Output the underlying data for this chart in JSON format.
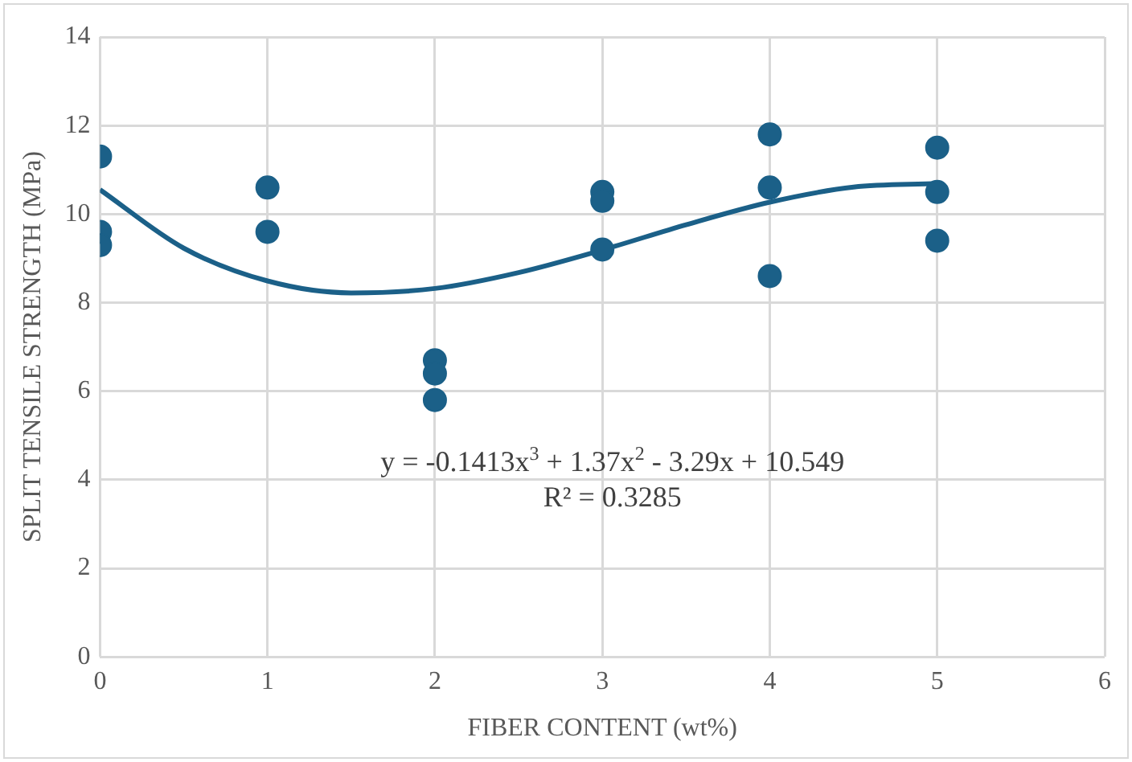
{
  "chart_data": {
    "type": "scatter",
    "xlabel": "FIBER CONTENT (wt%)",
    "ylabel": "SPLIT TENSILE STRENGTH (MPa)",
    "xlim": [
      0,
      6
    ],
    "xticks": [
      0,
      1,
      2,
      3,
      4,
      5,
      6
    ],
    "ylim": [
      0,
      14
    ],
    "yticks": [
      0,
      2,
      4,
      6,
      8,
      10,
      12,
      14
    ],
    "grid": true,
    "legend": false,
    "marker": "circle",
    "series": [
      {
        "color": "#1b6088",
        "x": [
          0,
          0,
          0,
          1,
          1,
          2,
          2,
          2,
          3,
          3,
          3,
          4,
          4,
          4,
          5,
          5,
          5
        ],
        "values": [
          11.3,
          9.6,
          9.3,
          10.6,
          9.6,
          6.7,
          6.4,
          5.8,
          10.5,
          10.3,
          9.2,
          11.8,
          10.6,
          8.6,
          11.5,
          10.5,
          9.4
        ]
      },
      {
        "type": "line",
        "color": "#1b6088",
        "marker": "none",
        "x": [
          0,
          0.5,
          1,
          1.5,
          2,
          2.5,
          3,
          3.5,
          4,
          4.5,
          5
        ],
        "values": [
          10.55,
          9.23,
          8.49,
          8.22,
          8.32,
          8.68,
          9.19,
          9.76,
          10.27,
          10.61,
          10.69
        ]
      }
    ],
    "annotations": [
      "y = -0.1413x$^{3}$ + 1.37x$^{2}$ - 3.29x + 10.549",
      "R² = 0.3285"
    ]
  }
}
